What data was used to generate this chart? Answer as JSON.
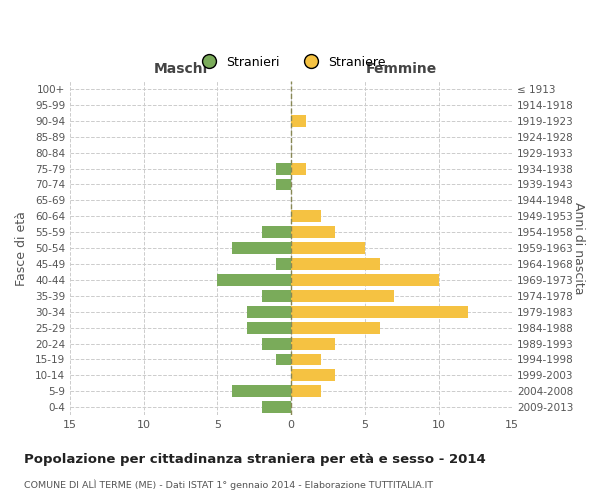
{
  "age_groups": [
    "100+",
    "95-99",
    "90-94",
    "85-89",
    "80-84",
    "75-79",
    "70-74",
    "65-69",
    "60-64",
    "55-59",
    "50-54",
    "45-49",
    "40-44",
    "35-39",
    "30-34",
    "25-29",
    "20-24",
    "15-19",
    "10-14",
    "5-9",
    "0-4"
  ],
  "birth_years": [
    "≤ 1913",
    "1914-1918",
    "1919-1923",
    "1924-1928",
    "1929-1933",
    "1934-1938",
    "1939-1943",
    "1944-1948",
    "1949-1953",
    "1954-1958",
    "1959-1963",
    "1964-1968",
    "1969-1973",
    "1974-1978",
    "1979-1983",
    "1984-1988",
    "1989-1993",
    "1994-1998",
    "1999-2003",
    "2004-2008",
    "2009-2013"
  ],
  "males": [
    0,
    0,
    0,
    0,
    0,
    1,
    1,
    0,
    0,
    2,
    4,
    1,
    5,
    2,
    3,
    3,
    2,
    1,
    0,
    4,
    2
  ],
  "females": [
    0,
    0,
    1,
    0,
    0,
    1,
    0,
    0,
    2,
    3,
    5,
    6,
    10,
    7,
    12,
    6,
    3,
    2,
    3,
    2,
    0
  ],
  "male_color": "#7aab5a",
  "female_color": "#f5c242",
  "male_label": "Stranieri",
  "female_label": "Straniere",
  "title": "Popolazione per cittadinanza straniera per età e sesso - 2014",
  "subtitle": "COMUNE DI ALÌ TERME (ME) - Dati ISTAT 1° gennaio 2014 - Elaborazione TUTTITALIA.IT",
  "xlabel_left": "Maschi",
  "xlabel_right": "Femmine",
  "ylabel_left": "Fasce di età",
  "ylabel_right": "Anni di nascita",
  "xlim": 15,
  "bg_color": "#ffffff",
  "grid_color": "#cccccc"
}
